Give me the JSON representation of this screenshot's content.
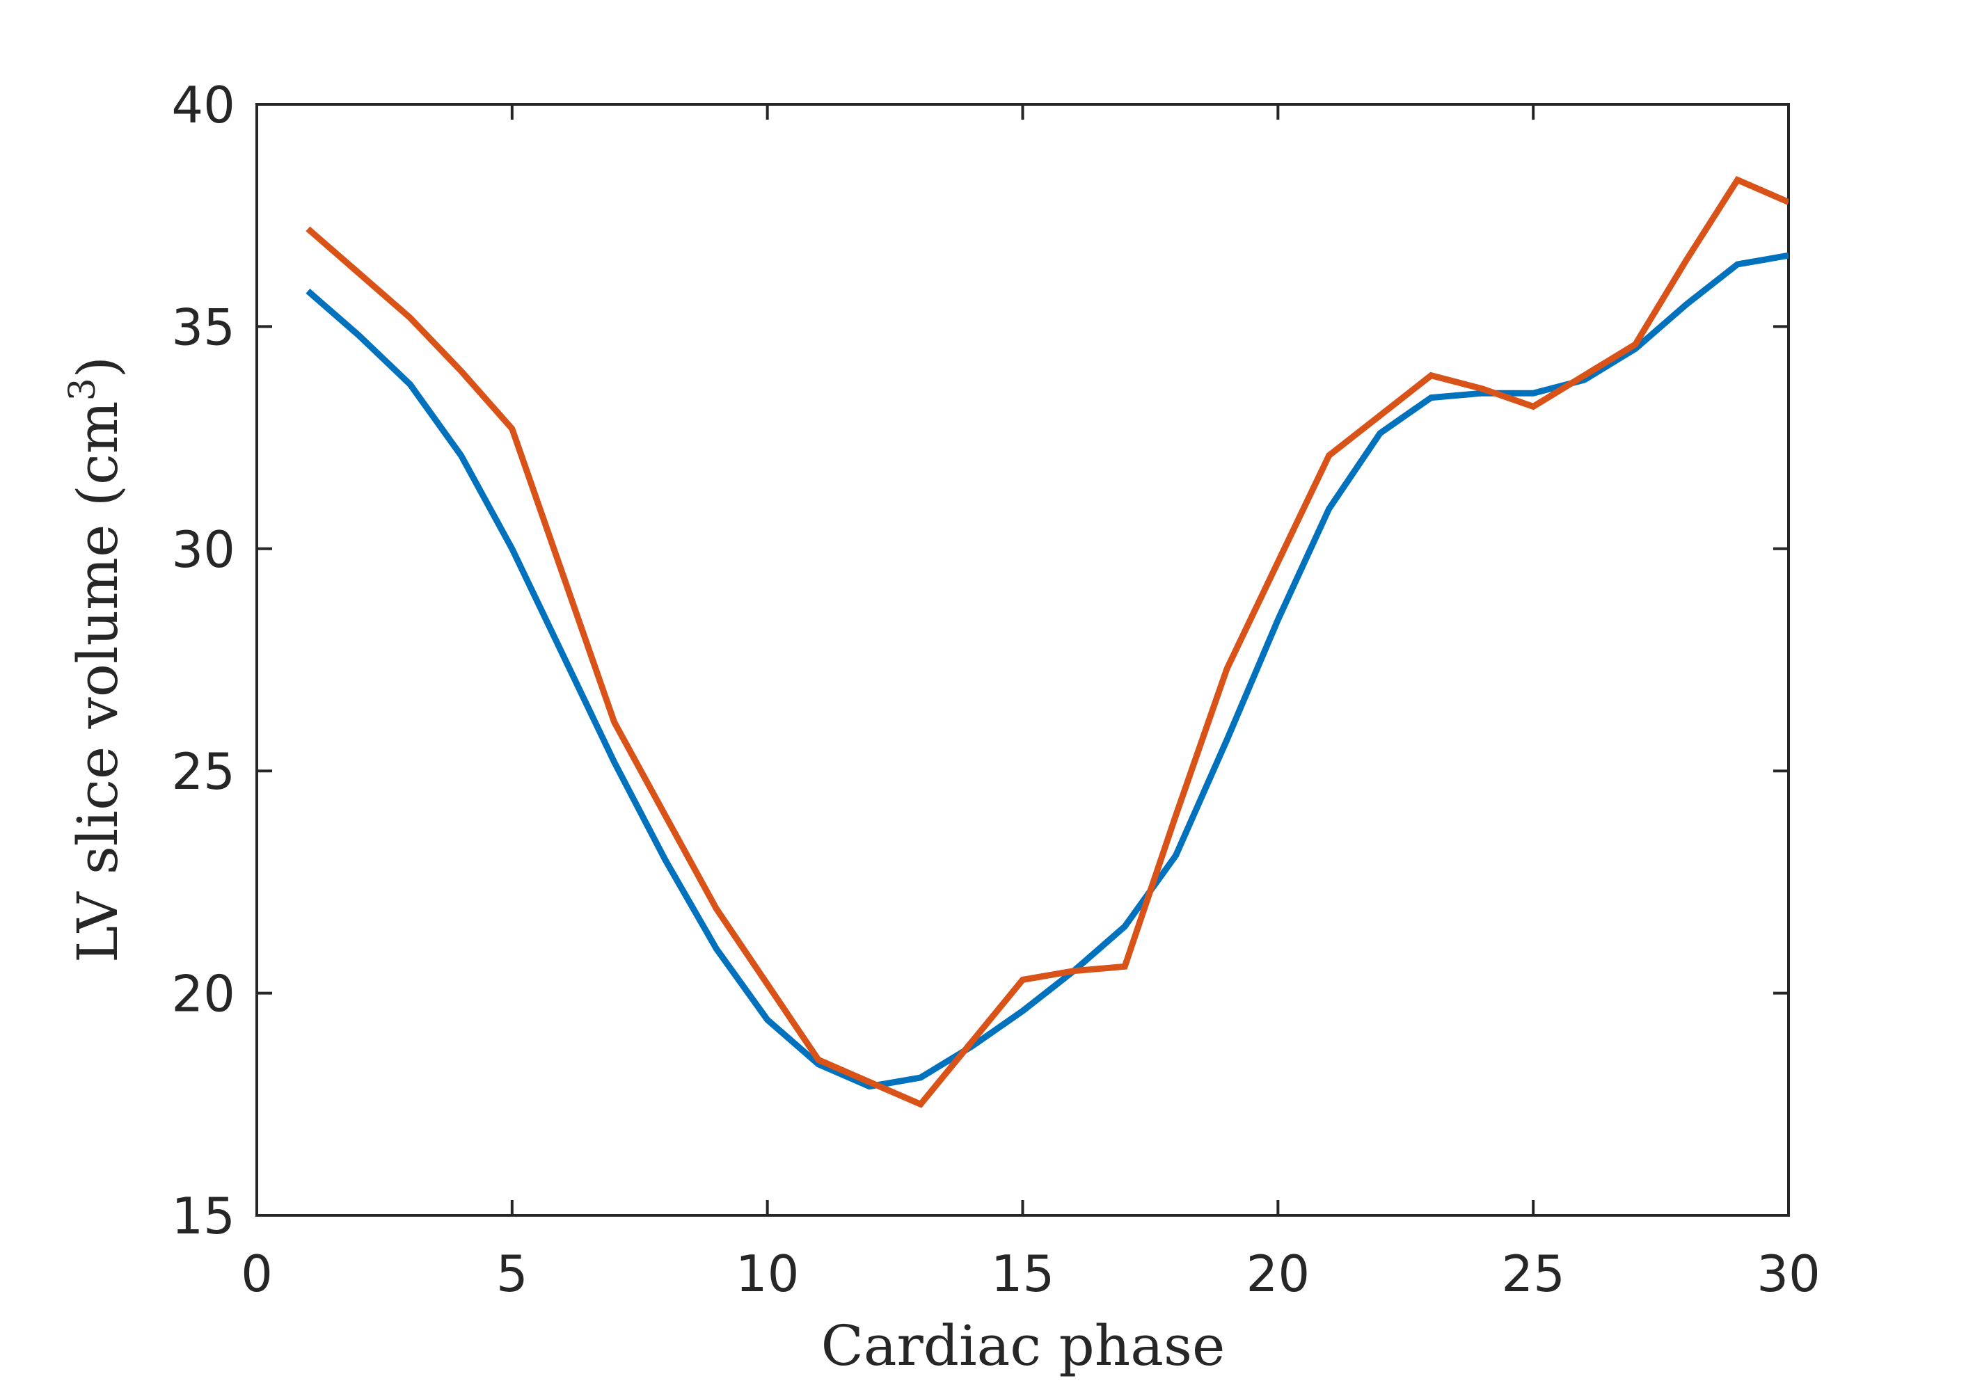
{
  "chart_data": {
    "type": "line",
    "xlabel": "Cardiac phase",
    "ylabel": "LV slice volume (cm",
    "ylabel_sup": "3",
    "ylabel_close": ")",
    "xlim": [
      0,
      30
    ],
    "ylim": [
      15,
      40
    ],
    "xticks": [
      0,
      5,
      10,
      15,
      20,
      25,
      30
    ],
    "yticks": [
      15,
      20,
      25,
      30,
      35,
      40
    ],
    "grid": false,
    "legend": "none",
    "x": [
      1,
      2,
      3,
      4,
      5,
      6,
      7,
      8,
      9,
      10,
      11,
      12,
      13,
      14,
      15,
      16,
      17,
      18,
      19,
      20,
      21,
      22,
      23,
      24,
      25,
      26,
      27,
      28,
      29,
      30
    ],
    "series": [
      {
        "color": "#0072BD",
        "values": [
          35.8,
          34.8,
          33.7,
          32.1,
          30.0,
          27.6,
          25.2,
          23.0,
          21.0,
          19.4,
          18.4,
          17.9,
          18.1,
          18.8,
          19.6,
          20.5,
          21.5,
          23.1,
          25.7,
          28.4,
          30.9,
          32.6,
          33.4,
          33.5,
          33.5,
          33.8,
          34.5,
          35.5,
          36.4,
          36.6
        ]
      },
      {
        "color": "#D95319",
        "values": [
          37.2,
          36.2,
          35.2,
          34.0,
          32.7,
          29.4,
          26.1,
          24.0,
          21.9,
          20.2,
          18.5,
          18.0,
          17.5,
          18.9,
          20.3,
          20.5,
          20.6,
          24.0,
          27.3,
          29.7,
          32.1,
          33.0,
          33.9,
          33.6,
          33.2,
          33.9,
          34.6,
          36.5,
          38.3,
          37.8
        ]
      }
    ]
  }
}
